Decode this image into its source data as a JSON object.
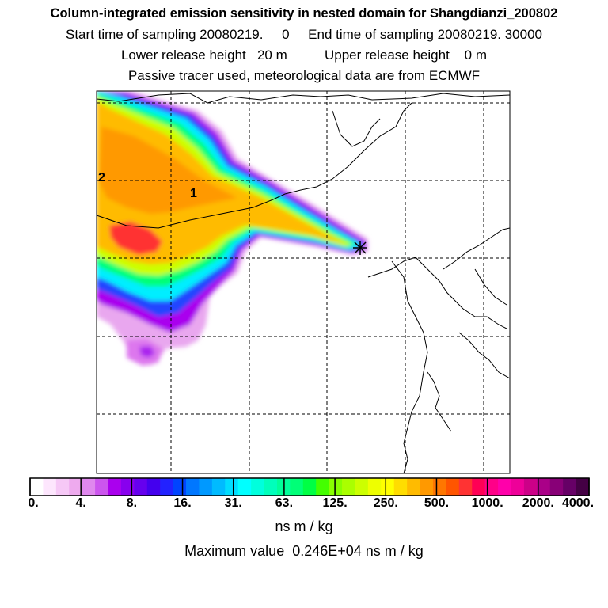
{
  "header": {
    "title": "Column-integrated emission sensitivity in nested domain for Shangdianzi_200802",
    "line1": "Start time of sampling 20080219.     0     End time of sampling 20080219. 30000",
    "line2": "Lower release height   20 m          Upper release height    0 m",
    "line3": "Passive tracer used, meteorological data are from ECMWF"
  },
  "chart_data": {
    "type": "heatmap",
    "title": "Column-integrated emission sensitivity in nested domain for Shangdianzi_200802",
    "colorbar": {
      "ticks": [
        "0.",
        "4.",
        "8.",
        "16.",
        "31.",
        "63.",
        "125.",
        "250.",
        "500.",
        "1000.",
        "2000.",
        "4000."
      ],
      "unit": "ns m / kg",
      "scale": "log",
      "colors": [
        "#ffffff",
        "#fde6fd",
        "#f6c8f6",
        "#eeaaee",
        "#e088ee",
        "#cc55ee",
        "#aa00ee",
        "#8800ee",
        "#6600ee",
        "#4400ee",
        "#2222ff",
        "#0044ff",
        "#0077ff",
        "#0099ff",
        "#00bbff",
        "#00ddff",
        "#00ffff",
        "#00ffdd",
        "#00ffbb",
        "#00ff99",
        "#00ff77",
        "#00ff44",
        "#44ff00",
        "#88ff00",
        "#aaff00",
        "#ccff00",
        "#eeff00",
        "#ffff00",
        "#ffdd00",
        "#ffbb00",
        "#ff9900",
        "#ff7700",
        "#ff5500",
        "#ff3333",
        "#ff0055",
        "#ff0088",
        "#ff00aa",
        "#ee0099",
        "#cc0088",
        "#aa0088",
        "#880077",
        "#660066",
        "#440044"
      ]
    },
    "max_value": "0.246E+04",
    "annotations": [
      "1",
      "2"
    ],
    "release_marker": "receptor",
    "grid": true
  },
  "footer": {
    "maximum_label": "Maximum value  0.246E+04 ns m / kg"
  }
}
